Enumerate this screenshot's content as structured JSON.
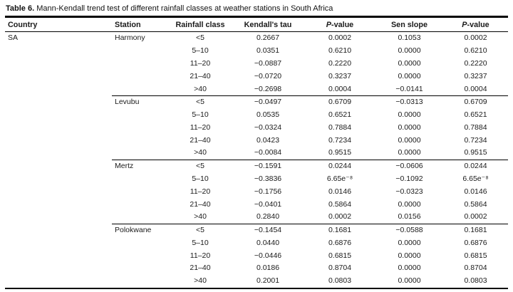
{
  "title": {
    "label": "Table 6.",
    "text": "Mann-Kendall trend test of different rainfall classes at weather stations in South Africa"
  },
  "table": {
    "headers": [
      "Country",
      "Station",
      "Rainfall class",
      "Kendall's tau",
      "P-value",
      "Sen slope",
      "P-value"
    ],
    "country": "SA",
    "groups": [
      {
        "station": "Harmony",
        "rows": [
          [
            "<5",
            "0.2667",
            "0.0002",
            "0.1053",
            "0.0002"
          ],
          [
            "5–10",
            "0.0351",
            "0.6210",
            "0.0000",
            "0.6210"
          ],
          [
            "11–20",
            "−0.0887",
            "0.2220",
            "0.0000",
            "0.2220"
          ],
          [
            "21–40",
            "−0.0720",
            "0.3237",
            "0.0000",
            "0.3237"
          ],
          [
            ">40",
            "−0.2698",
            "0.0004",
            "−0.0141",
            "0.0004"
          ]
        ]
      },
      {
        "station": "Levubu",
        "rows": [
          [
            "<5",
            "−0.0497",
            "0.6709",
            "−0.0313",
            "0.6709"
          ],
          [
            "5–10",
            "0.0535",
            "0.6521",
            "0.0000",
            "0.6521"
          ],
          [
            "11–20",
            "−0.0324",
            "0.7884",
            "0.0000",
            "0.7884"
          ],
          [
            "21–40",
            "0.0423",
            "0.7234",
            "0.0000",
            "0.7234"
          ],
          [
            ">40",
            "−0.0084",
            "0.9515",
            "0.0000",
            "0.9515"
          ]
        ]
      },
      {
        "station": "Mertz",
        "rows": [
          [
            "<5",
            "−0.1591",
            "0.0244",
            "−0.0606",
            "0.0244"
          ],
          [
            "5–10",
            "−0.3836",
            "6.65e⁻⁸",
            "−0.1092",
            "6.65e⁻⁸"
          ],
          [
            "11–20",
            "−0.1756",
            "0.0146",
            "−0.0323",
            "0.0146"
          ],
          [
            "21–40",
            "−0.0401",
            "0.5864",
            "0.0000",
            "0.5864"
          ],
          [
            ">40",
            "0.2840",
            "0.0002",
            "0.0156",
            "0.0002"
          ]
        ]
      },
      {
        "station": "Polokwane",
        "rows": [
          [
            "<5",
            "−0.1454",
            "0.1681",
            "−0.0588",
            "0.1681"
          ],
          [
            "5–10",
            "0.0440",
            "0.6876",
            "0.0000",
            "0.6876"
          ],
          [
            "11–20",
            "−0.0446",
            "0.6815",
            "0.0000",
            "0.6815"
          ],
          [
            "21–40",
            "0.0186",
            "0.8704",
            "0.0000",
            "0.8704"
          ],
          [
            ">40",
            "0.2001",
            "0.0803",
            "0.0000",
            "0.0803"
          ]
        ]
      }
    ]
  }
}
